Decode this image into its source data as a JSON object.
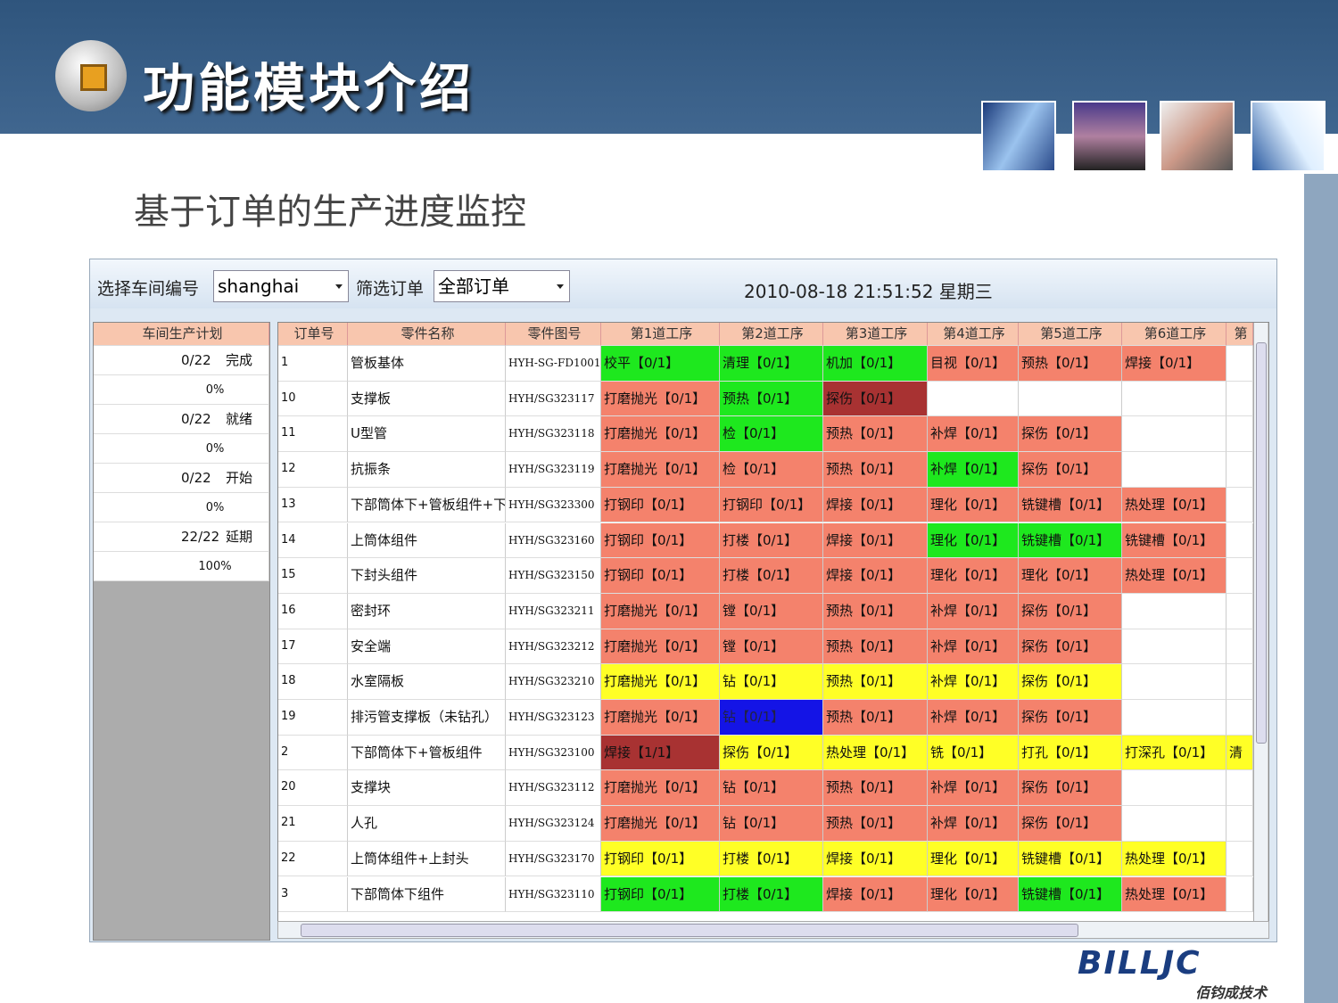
{
  "header": {
    "title": "功能模块介绍",
    "subtitle": "基于订单的生产进度监控"
  },
  "toolbar": {
    "workshop_label": "选择车间编号",
    "workshop": "shanghai",
    "filter_label": "筛选订单",
    "filter": "全部订单",
    "datetime": "2010-08-18 21:51:52 星期三"
  },
  "plan": {
    "title": "车间生产计划",
    "rows": [
      {
        "count": "0/22",
        "status": "完成",
        "percent": "0%"
      },
      {
        "count": "0/22",
        "status": "就绪",
        "percent": "0%"
      },
      {
        "count": "0/22",
        "status": "开始",
        "percent": "0%"
      },
      {
        "count": "22/22",
        "status": "延期",
        "percent": "100%"
      }
    ]
  },
  "table": {
    "columns": [
      "订单号",
      "零件名称",
      "零件图号",
      "第1道工序",
      "第2道工序",
      "第3道工序",
      "第4道工序",
      "第5道工序",
      "第6道工序",
      "第"
    ],
    "rows": [
      {
        "id": "1",
        "name": "管板基体",
        "drawing": "HYH-SG-FD1001",
        "steps": [
          {
            "text": "校平【0/1】",
            "color": "#1ee81e"
          },
          {
            "text": "清理【0/1】",
            "color": "#1ee81e"
          },
          {
            "text": "机加【0/1】",
            "color": "#1ee81e"
          },
          {
            "text": "目视【0/1】",
            "color": "#f4826c"
          },
          {
            "text": "预热【0/1】",
            "color": "#f4826c"
          },
          {
            "text": "焊接【0/1】",
            "color": "#f4826c"
          }
        ]
      },
      {
        "id": "10",
        "name": "支撑板",
        "drawing": "HYH/SG323117",
        "steps": [
          {
            "text": "打磨抛光【0/1】",
            "color": "#f4826c"
          },
          {
            "text": "预热【0/1】",
            "color": "#1ee81e"
          },
          {
            "text": "探伤【0/1】",
            "color": "#a83232"
          }
        ]
      },
      {
        "id": "11",
        "name": "U型管",
        "drawing": "HYH/SG323118",
        "steps": [
          {
            "text": "打磨抛光【0/1】",
            "color": "#f4826c"
          },
          {
            "text": "检【0/1】",
            "color": "#1ee81e"
          },
          {
            "text": "预热【0/1】",
            "color": "#f4826c"
          },
          {
            "text": "补焊【0/1】",
            "color": "#f4826c"
          },
          {
            "text": "探伤【0/1】",
            "color": "#f4826c"
          }
        ]
      },
      {
        "id": "12",
        "name": "抗振条",
        "drawing": "HYH/SG323119",
        "steps": [
          {
            "text": "打磨抛光【0/1】",
            "color": "#f4826c"
          },
          {
            "text": "检【0/1】",
            "color": "#f4826c"
          },
          {
            "text": "预热【0/1】",
            "color": "#f4826c"
          },
          {
            "text": "补焊【0/1】",
            "color": "#1ee81e"
          },
          {
            "text": "探伤【0/1】",
            "color": "#f4826c"
          }
        ]
      },
      {
        "id": "13",
        "name": "下部筒体下+管板组件+下",
        "drawing": "HYH/SG323300",
        "steps": [
          {
            "text": "打钢印【0/1】",
            "color": "#f4826c"
          },
          {
            "text": "打钢印【0/1】",
            "color": "#f4826c"
          },
          {
            "text": "焊接【0/1】",
            "color": "#f4826c"
          },
          {
            "text": "理化【0/1】",
            "color": "#f4826c"
          },
          {
            "text": "铣键槽【0/1】",
            "color": "#f4826c"
          },
          {
            "text": "热处理【0/1】",
            "color": "#f4826c"
          }
        ]
      },
      {
        "id": "14",
        "name": "上筒体组件",
        "drawing": "HYH/SG323160",
        "steps": [
          {
            "text": "打钢印【0/1】",
            "color": "#f4826c"
          },
          {
            "text": "打楼【0/1】",
            "color": "#f4826c"
          },
          {
            "text": "焊接【0/1】",
            "color": "#f4826c"
          },
          {
            "text": "理化【0/1】",
            "color": "#1ee81e"
          },
          {
            "text": "铣键槽【0/1】",
            "color": "#1ee81e"
          },
          {
            "text": "铣键槽【0/1】",
            "color": "#f4826c"
          }
        ]
      },
      {
        "id": "15",
        "name": "下封头组件",
        "drawing": "HYH/SG323150",
        "steps": [
          {
            "text": "打钢印【0/1】",
            "color": "#f4826c"
          },
          {
            "text": "打楼【0/1】",
            "color": "#f4826c"
          },
          {
            "text": "焊接【0/1】",
            "color": "#f4826c"
          },
          {
            "text": "理化【0/1】",
            "color": "#f4826c"
          },
          {
            "text": "理化【0/1】",
            "color": "#f4826c"
          },
          {
            "text": "热处理【0/1】",
            "color": "#f4826c"
          }
        ]
      },
      {
        "id": "16",
        "name": "密封环",
        "drawing": "HYH/SG323211",
        "steps": [
          {
            "text": "打磨抛光【0/1】",
            "color": "#f4826c"
          },
          {
            "text": "镗【0/1】",
            "color": "#f4826c"
          },
          {
            "text": "预热【0/1】",
            "color": "#f4826c"
          },
          {
            "text": "补焊【0/1】",
            "color": "#f4826c"
          },
          {
            "text": "探伤【0/1】",
            "color": "#f4826c"
          }
        ]
      },
      {
        "id": "17",
        "name": "安全端",
        "drawing": "HYH/SG323212",
        "steps": [
          {
            "text": "打磨抛光【0/1】",
            "color": "#f4826c"
          },
          {
            "text": "镗【0/1】",
            "color": "#f4826c"
          },
          {
            "text": "预热【0/1】",
            "color": "#f4826c"
          },
          {
            "text": "补焊【0/1】",
            "color": "#f4826c"
          },
          {
            "text": "探伤【0/1】",
            "color": "#f4826c"
          }
        ]
      },
      {
        "id": "18",
        "name": "水室隔板",
        "drawing": "HYH/SG323210",
        "steps": [
          {
            "text": "打磨抛光【0/1】",
            "color": "#ffff26"
          },
          {
            "text": "钻【0/1】",
            "color": "#ffff26"
          },
          {
            "text": "预热【0/1】",
            "color": "#ffff26"
          },
          {
            "text": "补焊【0/1】",
            "color": "#ffff26"
          },
          {
            "text": "探伤【0/1】",
            "color": "#ffff26"
          }
        ]
      },
      {
        "id": "19",
        "name": "排污管支撑板（未钻孔）",
        "drawing": "HYH/SG323123",
        "steps": [
          {
            "text": "打磨抛光【0/1】",
            "color": "#f4826c"
          },
          {
            "text": "钻【0/1】",
            "color": "#1414e6"
          },
          {
            "text": "预热【0/1】",
            "color": "#f4826c"
          },
          {
            "text": "补焊【0/1】",
            "color": "#f4826c"
          },
          {
            "text": "探伤【0/1】",
            "color": "#f4826c"
          }
        ]
      },
      {
        "id": "2",
        "name": "下部筒体下+管板组件",
        "drawing": "HYH/SG323100",
        "steps": [
          {
            "text": "焊接【1/1】",
            "color": "#a83232"
          },
          {
            "text": "探伤【0/1】",
            "color": "#ffff26"
          },
          {
            "text": "热处理【0/1】",
            "color": "#ffff26"
          },
          {
            "text": "铣【0/1】",
            "color": "#ffff26"
          },
          {
            "text": "打孔【0/1】",
            "color": "#ffff26"
          },
          {
            "text": "打深孔【0/1】",
            "color": "#ffff26"
          },
          {
            "text": "清",
            "color": "#ffff26"
          }
        ]
      },
      {
        "id": "20",
        "name": "支撑块",
        "drawing": "HYH/SG323112",
        "steps": [
          {
            "text": "打磨抛光【0/1】",
            "color": "#f4826c"
          },
          {
            "text": "钻【0/1】",
            "color": "#f4826c"
          },
          {
            "text": "预热【0/1】",
            "color": "#f4826c"
          },
          {
            "text": "补焊【0/1】",
            "color": "#f4826c"
          },
          {
            "text": "探伤【0/1】",
            "color": "#f4826c"
          }
        ]
      },
      {
        "id": "21",
        "name": "人孔",
        "drawing": "HYH/SG323124",
        "steps": [
          {
            "text": "打磨抛光【0/1】",
            "color": "#f4826c"
          },
          {
            "text": "钻【0/1】",
            "color": "#f4826c"
          },
          {
            "text": "预热【0/1】",
            "color": "#f4826c"
          },
          {
            "text": "补焊【0/1】",
            "color": "#f4826c"
          },
          {
            "text": "探伤【0/1】",
            "color": "#f4826c"
          }
        ]
      },
      {
        "id": "22",
        "name": "上筒体组件+上封头",
        "drawing": "HYH/SG323170",
        "steps": [
          {
            "text": "打钢印【0/1】",
            "color": "#ffff26"
          },
          {
            "text": "打楼【0/1】",
            "color": "#ffff26"
          },
          {
            "text": "焊接【0/1】",
            "color": "#ffff26"
          },
          {
            "text": "理化【0/1】",
            "color": "#ffff26"
          },
          {
            "text": "铣键槽【0/1】",
            "color": "#ffff26"
          },
          {
            "text": "热处理【0/1】",
            "color": "#ffff26"
          }
        ]
      },
      {
        "id": "3",
        "name": "下部筒体下组件",
        "drawing": "HYH/SG323110",
        "steps": [
          {
            "text": "打钢印【0/1】",
            "color": "#1ee81e"
          },
          {
            "text": "打楼【0/1】",
            "color": "#1ee81e"
          },
          {
            "text": "焊接【0/1】",
            "color": "#f4826c"
          },
          {
            "text": "理化【0/1】",
            "color": "#f4826c"
          },
          {
            "text": "铣键槽【0/1】",
            "color": "#1ee81e"
          },
          {
            "text": "热处理【0/1】",
            "color": "#f4826c"
          }
        ]
      }
    ]
  },
  "logo": {
    "brand": "BILLJC",
    "tagline": "佰钧成技术"
  }
}
